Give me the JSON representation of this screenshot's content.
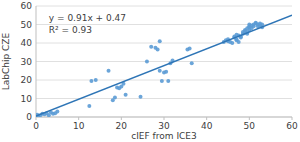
{
  "chart_data": {
    "type": "scatter",
    "xlabel": "cIEF from ICE3",
    "ylabel": "LabChip CZE",
    "annotations": [
      "y = 0.91x + 0.47",
      "R² = 0.93"
    ],
    "xlim": [
      0,
      60
    ],
    "ylim": [
      0,
      60
    ],
    "xticks": [
      0,
      10,
      20,
      30,
      40,
      50,
      60
    ],
    "yticks": [
      0,
      10,
      20,
      30,
      40,
      50,
      60
    ],
    "grid": true,
    "series": [
      {
        "type": "scatter",
        "color": "#5B9BD5",
        "x": [
          0.3,
          0.5,
          1.0,
          1.5,
          2.0,
          2.5,
          3.0,
          3.5,
          4.0,
          4.5,
          5.0,
          12.5,
          13.0,
          14.0,
          17.0,
          18.0,
          18.5,
          19.0,
          19.5,
          20.0,
          20.5,
          21.0,
          24.5,
          26.0,
          27.0,
          28.0,
          28.5,
          29.0,
          29.0,
          29.5,
          30.0,
          30.5,
          31.0,
          31.5,
          32.0,
          35.5,
          36.0,
          36.5,
          44.0,
          44.5,
          45.0,
          45.0,
          45.5,
          46.0,
          46.5,
          47.0,
          47.0,
          47.5,
          47.5,
          48.0,
          48.0,
          48.5,
          48.5,
          49.0,
          49.0,
          49.0,
          49.5,
          49.5,
          49.5,
          50.0,
          50.0,
          50.0,
          50.0,
          50.5,
          50.5,
          51.0,
          51.0,
          51.5,
          51.5,
          52.0,
          52.0,
          52.5,
          52.5,
          53.0,
          53.0,
          47.0,
          46.5
        ],
        "values": [
          1.2,
          0.5,
          1.0,
          1.8,
          1.5,
          2.0,
          1.0,
          2.5,
          1.8,
          2.0,
          3.0,
          6.0,
          19.5,
          20.0,
          25.0,
          9.0,
          10.5,
          16.0,
          15.5,
          16.5,
          18.0,
          12.0,
          11.0,
          30.0,
          38.0,
          37.5,
          36.5,
          25.0,
          41.0,
          19.5,
          24.0,
          24.5,
          19.5,
          29.0,
          30.5,
          36.5,
          37.0,
          29.0,
          40.5,
          41.5,
          42.0,
          41.0,
          40.5,
          40.0,
          43.0,
          42.0,
          41.5,
          40.5,
          44.0,
          43.5,
          43.0,
          45.0,
          46.0,
          47.0,
          46.5,
          45.5,
          45.0,
          48.0,
          46.0,
          47.0,
          48.5,
          49.0,
          50.0,
          48.0,
          49.5,
          49.0,
          50.0,
          51.0,
          50.5,
          50.0,
          49.0,
          49.5,
          50.5,
          50.0,
          48.5,
          44.5,
          43.5
        ]
      },
      {
        "type": "line",
        "color": "#2E75B6",
        "x": [
          0,
          60
        ],
        "values": [
          0.47,
          55.07
        ]
      }
    ]
  }
}
